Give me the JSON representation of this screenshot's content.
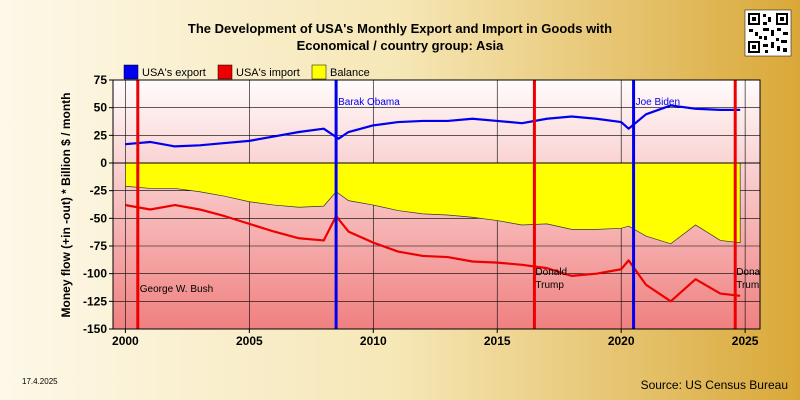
{
  "chart_data": {
    "type": "line",
    "title_line1": "The Development of USA's Monthly Export and Import in Goods with",
    "title_line2": "Economical / country group: Asia",
    "ylabel": "Money flow (+in -out) * Billion $ / month",
    "xlim": [
      1999.5,
      2025.6
    ],
    "ylim": [
      -150,
      75
    ],
    "x_ticks": [
      2000,
      2005,
      2010,
      2015,
      2020,
      2025
    ],
    "y_ticks": [
      75,
      50,
      25,
      0,
      -25,
      -50,
      -75,
      -100,
      -125,
      -150
    ],
    "legend": [
      "USA's export",
      "USA's import",
      "Balance"
    ],
    "series": [
      {
        "name": "USA's export",
        "color": "#0000ee",
        "x": [
          2000,
          2001,
          2002,
          2003,
          2004,
          2005,
          2006,
          2007,
          2008,
          2008.6,
          2009,
          2010,
          2011,
          2012,
          2013,
          2014,
          2015,
          2016,
          2017,
          2018,
          2019,
          2020,
          2020.3,
          2021,
          2022,
          2023,
          2024,
          2024.8
        ],
        "y": [
          17,
          19,
          15,
          16,
          18,
          20,
          24,
          28,
          31,
          22,
          28,
          34,
          37,
          38,
          38,
          40,
          38,
          36,
          40,
          42,
          40,
          37,
          31,
          44,
          52,
          49,
          48,
          48
        ]
      },
      {
        "name": "USA's import",
        "color": "#ee0000",
        "x": [
          2000,
          2001,
          2002,
          2003,
          2004,
          2005,
          2006,
          2007,
          2008,
          2008.5,
          2009,
          2010,
          2011,
          2012,
          2013,
          2014,
          2015,
          2016,
          2017,
          2018,
          2019,
          2020,
          2020.3,
          2021,
          2022,
          2023,
          2024,
          2024.8
        ],
        "y": [
          -38,
          -42,
          -38,
          -42,
          -48,
          -55,
          -62,
          -68,
          -70,
          -48,
          -62,
          -72,
          -80,
          -84,
          -85,
          -89,
          -90,
          -92,
          -95,
          -102,
          -100,
          -96,
          -88,
          -110,
          -125,
          -105,
          -118,
          -120
        ]
      },
      {
        "name": "Balance",
        "color": "#ffff00",
        "x": [
          2000,
          2001,
          2002,
          2003,
          2004,
          2005,
          2006,
          2007,
          2008,
          2008.5,
          2009,
          2010,
          2011,
          2012,
          2013,
          2014,
          2015,
          2016,
          2017,
          2018,
          2019,
          2020,
          2020.3,
          2021,
          2022,
          2023,
          2024,
          2024.8
        ],
        "y": [
          -21,
          -23,
          -23,
          -26,
          -30,
          -35,
          -38,
          -40,
          -39,
          -26,
          -34,
          -38,
          -43,
          -46,
          -47,
          -49,
          -52,
          -56,
          -55,
          -60,
          -60,
          -59,
          -57,
          -66,
          -73,
          -56,
          -70,
          -72
        ]
      }
    ],
    "annotations": [
      {
        "x": 2000.5,
        "color": "#ee0000",
        "label": "George W. Bush",
        "label_pos": "bottom"
      },
      {
        "x": 2008.5,
        "color": "#0000ee",
        "label": "Barak Obama",
        "label_pos": "top"
      },
      {
        "x": 2016.5,
        "color": "#ee0000",
        "label": "Donald Trump",
        "label_pos": "bottom"
      },
      {
        "x": 2020.5,
        "color": "#0000ee",
        "label": "Joe Biden",
        "label_pos": "top"
      },
      {
        "x": 2024.6,
        "color": "#ee0000",
        "label": "Donald Trump",
        "label_pos": "bottom"
      }
    ],
    "date_label": "17.4.2025",
    "source": "Source: US Census Bureau"
  },
  "colors": {
    "export": "#0000ee",
    "import": "#ee0000",
    "balance": "#ffff00",
    "plot_bg_top": "#fffcfc",
    "plot_bg_bottom": "#f08080"
  },
  "qr": {
    "icon": "qr-code-icon"
  }
}
